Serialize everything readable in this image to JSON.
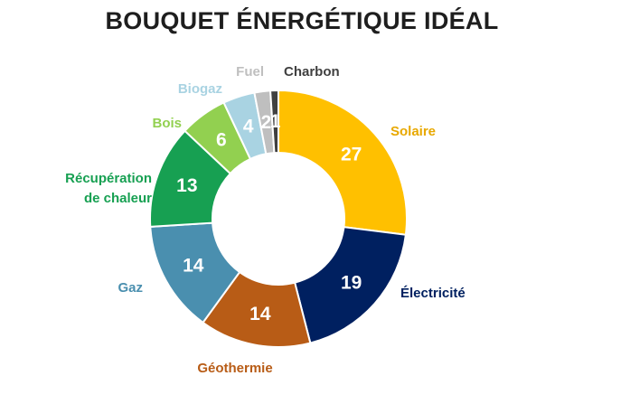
{
  "chart_data": {
    "type": "pie",
    "title": "BOUQUET ÉNERGÉTIQUE IDÉAL",
    "style": "donut",
    "slices": [
      {
        "label": "Solaire",
        "value": 27,
        "color": "#FFC000",
        "label_color": "#E8A800"
      },
      {
        "label": "Électricité",
        "value": 19,
        "color": "#002060",
        "label_color": "#002060"
      },
      {
        "label": "Géothermie",
        "value": 14,
        "color": "#B85C16",
        "label_color": "#B85C16"
      },
      {
        "label": "Gaz",
        "value": 14,
        "color": "#4A8FAF",
        "label_color": "#4A8FAF"
      },
      {
        "label": [
          "Récupération",
          "de chaleur"
        ],
        "value": 13,
        "color": "#17A052",
        "label_color": "#17A052"
      },
      {
        "label": "Bois",
        "value": 6,
        "color": "#92D050",
        "label_color": "#92D050"
      },
      {
        "label": "Biogaz",
        "value": 4,
        "color": "#A9D3E2",
        "label_color": "#A9D3E2"
      },
      {
        "label": "Fuel",
        "value": 2,
        "color": "#BFBFBF",
        "label_color": "#BFBFBF"
      },
      {
        "label": "Charbon",
        "value": 1,
        "color": "#404040",
        "label_color": "#404040"
      }
    ]
  }
}
